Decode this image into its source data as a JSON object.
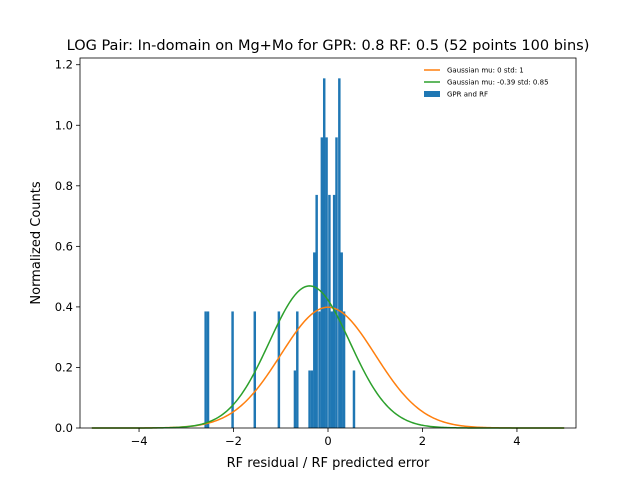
{
  "chart_data": {
    "type": "histogram",
    "title": "LOG Pair: In-domain on Mg+Mo for GPR: 0.8 RF: 0.5 (52 points 100 bins)",
    "xlabel": "RF residual / RF predicted error",
    "ylabel": "Normalized Counts",
    "xlim": [
      -5.25,
      5.25
    ],
    "ylim": [
      0,
      1.2222
    ],
    "xticks": [
      "−4",
      "−2",
      "0",
      "2",
      "4"
    ],
    "xtick_values": [
      -4,
      -2,
      0,
      2,
      4
    ],
    "yticks": [
      "0.0",
      "0.2",
      "0.4",
      "0.6",
      "0.8",
      "1.0",
      "1.2"
    ],
    "ytick_values": [
      0,
      0.2,
      0.4,
      0.6,
      0.8,
      1.0,
      1.2
    ],
    "bin_width": 0.0522,
    "bars": [
      {
        "x": -2.59,
        "h": 0.385
      },
      {
        "x": -2.54,
        "h": 0.385
      },
      {
        "x": -2.02,
        "h": 0.385
      },
      {
        "x": -1.55,
        "h": 0.385
      },
      {
        "x": -1.04,
        "h": 0.385
      },
      {
        "x": -0.7,
        "h": 0.19
      },
      {
        "x": -0.65,
        "h": 0.385
      },
      {
        "x": -0.39,
        "h": 0.19
      },
      {
        "x": -0.34,
        "h": 0.19
      },
      {
        "x": -0.29,
        "h": 0.58
      },
      {
        "x": -0.24,
        "h": 0.77
      },
      {
        "x": -0.18,
        "h": 0.385
      },
      {
        "x": -0.13,
        "h": 0.96
      },
      {
        "x": -0.08,
        "h": 1.155
      },
      {
        "x": -0.03,
        "h": 0.96
      },
      {
        "x": 0.03,
        "h": 0.77
      },
      {
        "x": 0.08,
        "h": 0.385
      },
      {
        "x": 0.13,
        "h": 0.77
      },
      {
        "x": 0.18,
        "h": 0.96
      },
      {
        "x": 0.24,
        "h": 1.155
      },
      {
        "x": 0.29,
        "h": 0.58
      },
      {
        "x": 0.34,
        "h": 0.385
      },
      {
        "x": 0.55,
        "h": 0.19
      }
    ],
    "curves": [
      {
        "mu": 0,
        "std": 1,
        "xmin": -5,
        "xmax": 5,
        "color": "#ff7f0e"
      },
      {
        "mu": -0.39,
        "std": 0.85,
        "xmin": -5,
        "xmax": 5,
        "color": "#2ca02c"
      }
    ],
    "bar_color": "#1f77b4",
    "legend": {
      "placement": "top-right",
      "entries": [
        {
          "label": "Gaussian mu: 0 std: 1",
          "color": "#ff7f0e",
          "kind": "line"
        },
        {
          "label": "Gaussian mu: -0.39 std: 0.85",
          "color": "#2ca02c",
          "kind": "line"
        },
        {
          "label": "GPR and RF",
          "color": "#1f77b4",
          "kind": "patch"
        }
      ]
    },
    "grid": false
  }
}
